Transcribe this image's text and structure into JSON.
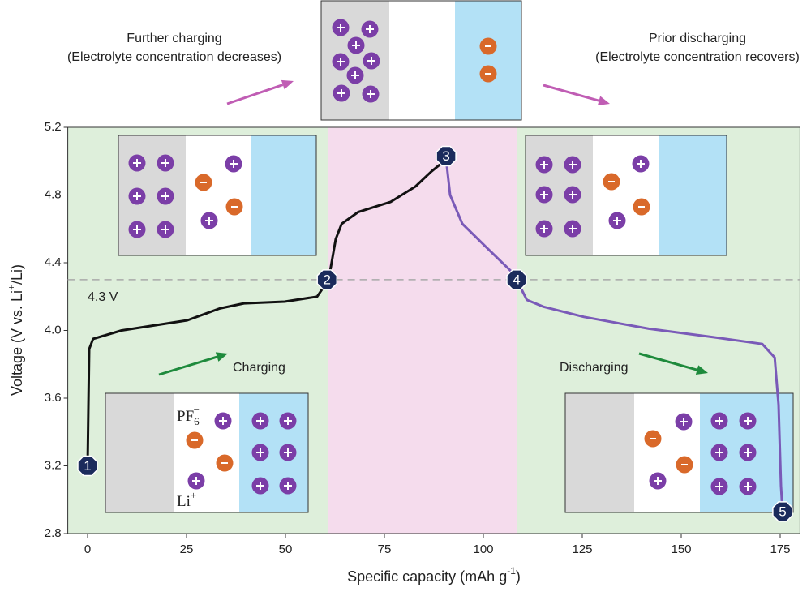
{
  "chart_data": {
    "type": "line",
    "annotations": {
      "top_left": [
        "Further charging",
        "(Electrolyte concentration decreases)"
      ],
      "top_right": [
        "Prior discharging",
        "(Electrolyte concentration recovers)"
      ],
      "charging": "Charging",
      "discharging": "Discharging"
    },
    "x_label": [
      "Specific capacity (mAh g",
      "-1",
      ")"
    ],
    "y_label": [
      "Voltage (V vs. Li",
      "+",
      "/Li)"
    ],
    "ion_labels": {
      "anion": "PF",
      "anion_sub": "6",
      "anion_sup": "−",
      "cation": "Li",
      "cation_sup": "+"
    },
    "xlim": [
      -5,
      180
    ],
    "ylim": [
      2.8,
      5.2
    ],
    "xticks": [
      0,
      25,
      50,
      75,
      100,
      125,
      150,
      175
    ],
    "yticks": [
      2.8,
      3.2,
      3.6,
      {
        "value": 4,
        "label": "4.0"
      },
      4.4,
      4.8,
      5.2
    ],
    "regions": [
      {
        "x": [
          -5,
          60.7
        ],
        "color": "#deefdb"
      },
      {
        "x": [
          60.7,
          108.4
        ],
        "color": "#f5dced"
      },
      {
        "x": [
          108.4,
          180
        ],
        "color": "#deefdb"
      }
    ],
    "reference_line": {
      "y": 4.3,
      "label": "4.3 V",
      "color": "#a9a9a9"
    },
    "series": [
      {
        "color": "#111111",
        "x": [
          0,
          0.4,
          1.4,
          8.6,
          25.2,
          33.4,
          39.5,
          49.8,
          58,
          60.9,
          62.7,
          64.2,
          68.4,
          76.6,
          82.8,
          86.9,
          90.6
        ],
        "values": [
          3.2,
          3.89,
          3.95,
          4.0,
          4.06,
          4.13,
          4.16,
          4.17,
          4.2,
          4.3,
          4.54,
          4.63,
          4.7,
          4.76,
          4.85,
          4.94,
          5.01
        ]
      },
      {
        "color": "#7a5ab8",
        "x": [
          90.6,
          91.6,
          94.7,
          100.8,
          107,
          108.4,
          111,
          115.2,
          125.4,
          141.8,
          158.2,
          170.5,
          173.6,
          174.6,
          175.2,
          175.6
        ],
        "values": [
          5.01,
          4.8,
          4.63,
          4.49,
          4.35,
          4.3,
          4.18,
          4.14,
          4.08,
          4.01,
          3.96,
          3.92,
          3.84,
          3.56,
          3.08,
          2.93
        ]
      }
    ],
    "markers": [
      {
        "label": "1",
        "x": 0,
        "y": 3.2
      },
      {
        "label": "2",
        "x": 60.5,
        "y": 4.3
      },
      {
        "label": "3",
        "x": 90.6,
        "y": 5.03
      },
      {
        "label": "4",
        "x": 108.4,
        "y": 4.3
      },
      {
        "label": "5",
        "x": 175.6,
        "y": 2.93
      }
    ],
    "marker_color": "#1b2b5c"
  }
}
